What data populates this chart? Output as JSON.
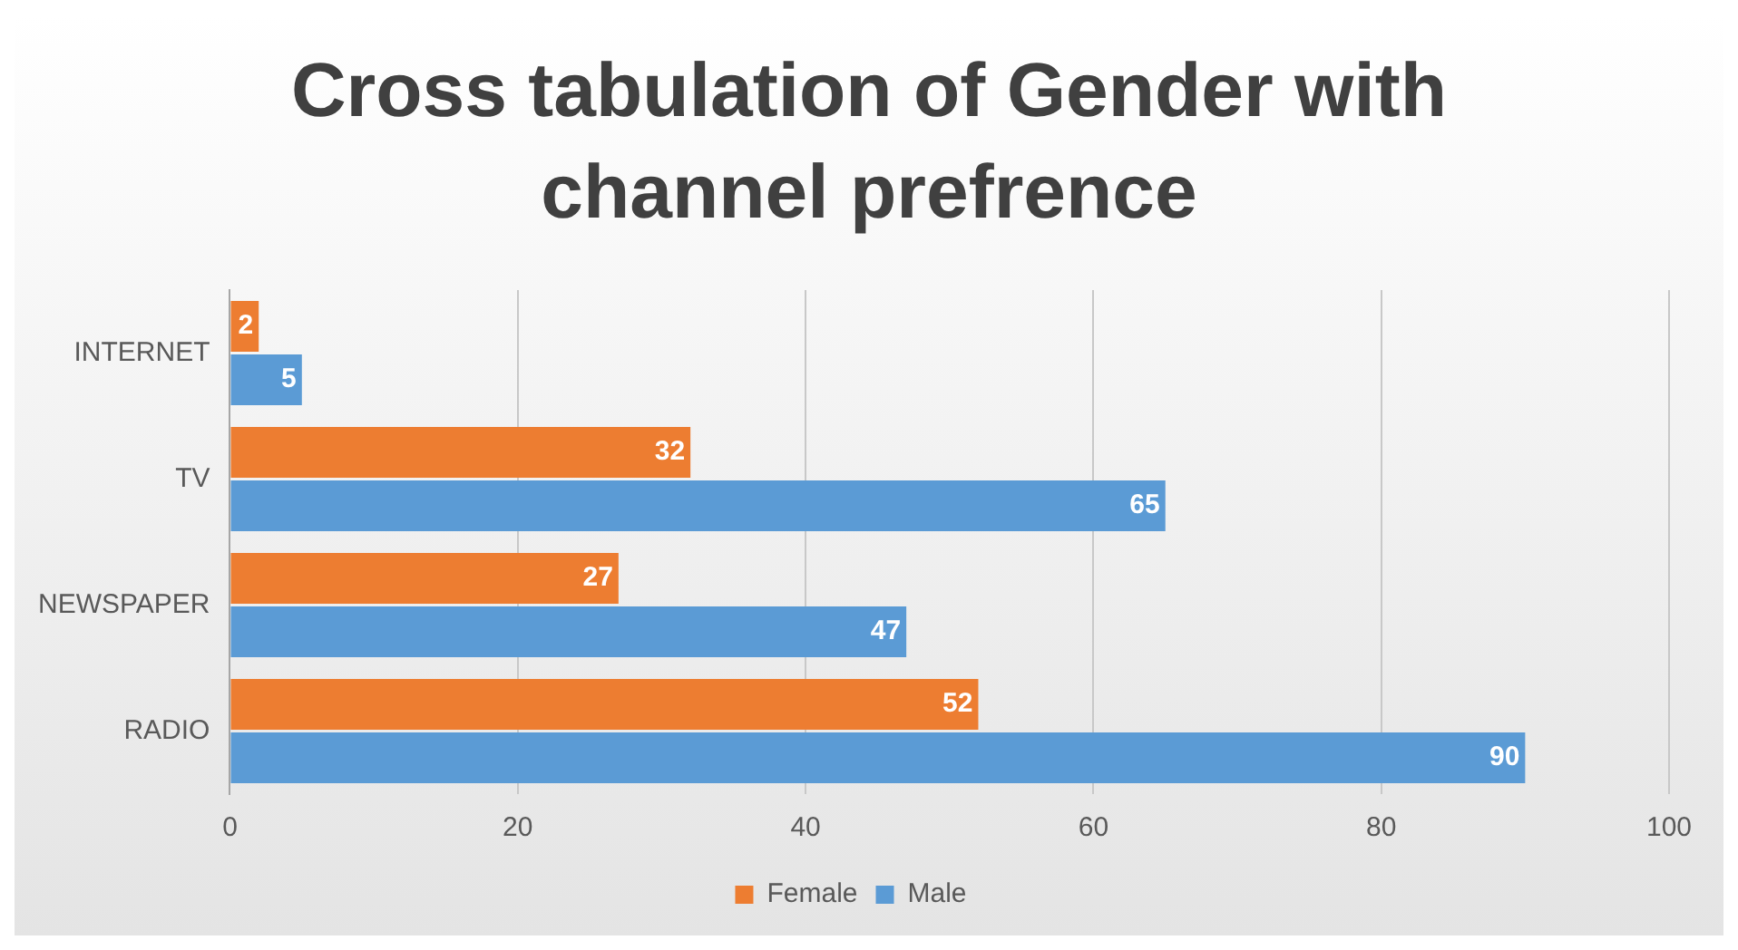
{
  "chart_data": {
    "type": "bar",
    "orientation": "horizontal",
    "title": "Cross tabulation of Gender with channel prefrence",
    "categories": [
      "INTERNET",
      "TV",
      "NEWSPAPER",
      "RADIO"
    ],
    "series": [
      {
        "name": "Female",
        "color": "#ed7d31",
        "values": [
          2,
          32,
          27,
          52
        ]
      },
      {
        "name": "Male",
        "color": "#5b9bd5",
        "values": [
          5,
          65,
          47,
          90
        ]
      }
    ],
    "xlim": [
      0,
      100
    ],
    "xticks": [
      0,
      20,
      40,
      60,
      80,
      100
    ],
    "grid": "x",
    "legend": "bottom",
    "data_labels": true
  }
}
